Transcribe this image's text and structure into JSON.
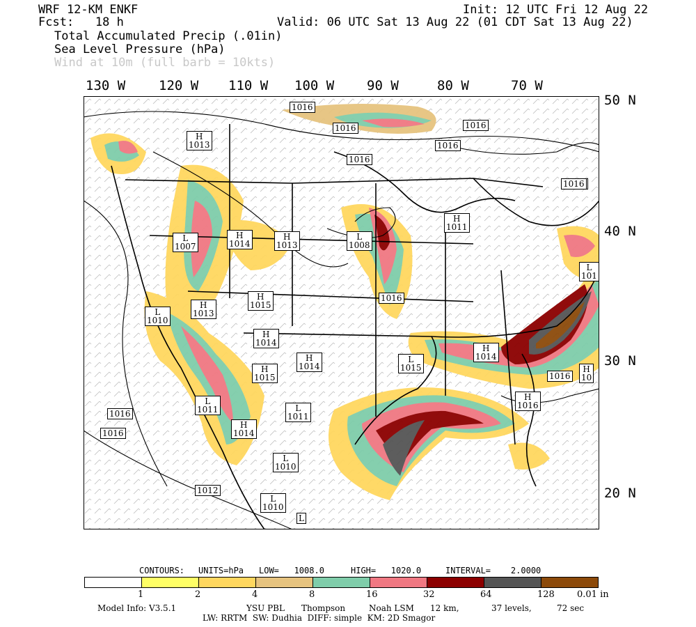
{
  "header": {
    "model": "WRF 12-KM ENKF",
    "fcst": "Fcst:   18 h",
    "init": "Init: 12 UTC Fri 12 Aug 22",
    "valid": "Valid: 06 UTC Sat 13 Aug 22 (01 CDT Sat 13 Aug 22)",
    "field1": "Total Accumulated Precip (.01in)",
    "field2": "Sea Level Pressure (hPa)",
    "field3": "Wind at 10m (full barb = 10kts)"
  },
  "axes": {
    "lon": [
      "130 W",
      "120 W",
      "110 W",
      "100 W",
      "90 W",
      "80 W",
      "70 W"
    ],
    "lat": [
      "50 N",
      "40 N",
      "30 N",
      "20 N"
    ]
  },
  "pressure_labels": [
    {
      "text": "1016"
    },
    {
      "text": "1016"
    },
    {
      "text": "1016"
    },
    {
      "text": "1016"
    },
    {
      "text": "1016"
    },
    {
      "text": "1016"
    },
    {
      "text": "H\n1013"
    },
    {
      "text": "L\n1007"
    },
    {
      "text": "H\n1014"
    },
    {
      "text": "H\n1013"
    },
    {
      "text": "L\n1008"
    },
    {
      "text": "H\n1011"
    },
    {
      "text": "H\n1015"
    },
    {
      "text": "L\n1010"
    },
    {
      "text": "H\n1013"
    },
    {
      "text": "H\n1014"
    },
    {
      "text": "H\n1014"
    },
    {
      "text": "H\n1015"
    },
    {
      "text": "L\n1015"
    },
    {
      "text": "H\n1014"
    },
    {
      "text": "1016"
    },
    {
      "text": "L\n1011"
    },
    {
      "text": "L\n1011"
    },
    {
      "text": "H\n1014"
    },
    {
      "text": "L\n1010"
    },
    {
      "text": "L\n1010"
    },
    {
      "text": "1016"
    },
    {
      "text": "1016"
    },
    {
      "text": "1012"
    },
    {
      "text": "H\n1016"
    },
    {
      "text": "1016"
    },
    {
      "text": "1016"
    },
    {
      "text": "L\n101"
    },
    {
      "text": "H\n10"
    },
    {
      "text": "L"
    }
  ],
  "contour_info": {
    "contours": "CONTOURS:",
    "units": "UNITS=hPa",
    "low": "LOW=   1008.0",
    "high": "HIGH=   1020.0",
    "interval": "INTERVAL=    2.0000"
  },
  "colorbar": {
    "colors": [
      "#ffffff",
      "#ffff66",
      "#ffd75f",
      "#e6c37f",
      "#7fcdaa",
      "#f07882",
      "#8c0000",
      "#555555",
      "#8c4a0a"
    ],
    "labels": [
      "1",
      "2",
      "4",
      "8",
      "16",
      "32",
      "64",
      "128",
      "0.01 in"
    ]
  },
  "footer": {
    "line1a": "Model Info: V3.5.1",
    "line1b": "YSU PBL",
    "line1c": "Thompson",
    "line1d": "Noah LSM",
    "line1e": "12 km,",
    "line1f": "37 levels,",
    "line1g": "72 sec",
    "line2": "LW: RRTM  SW: Dudhia  DIFF: simple  KM: 2D Smagor"
  }
}
